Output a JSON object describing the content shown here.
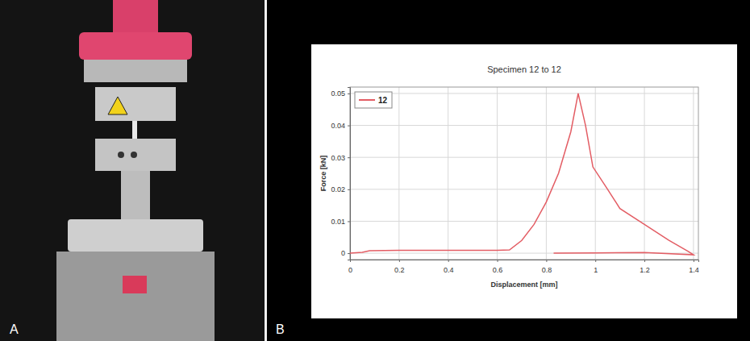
{
  "panel_labels": [
    "A",
    "B"
  ],
  "chart_data": {
    "type": "line",
    "title": "Specimen 12 to 12",
    "x_label": "Displacement [mm]",
    "y_label": "Force [kN]",
    "x": [
      0,
      0.05,
      0.08,
      0.2,
      0.4,
      0.6,
      0.65,
      0.7,
      0.75,
      0.8,
      0.85,
      0.9,
      0.93,
      0.96,
      0.99,
      1.05,
      1.1,
      1.2,
      1.3,
      1.38,
      1.4,
      1.2,
      1.0,
      0.83
    ],
    "series": [
      {
        "name": "12",
        "color": "#e35d64",
        "values": [
          0,
          0.0003,
          0.0008,
          0.0009,
          0.0009,
          0.0009,
          0.001,
          0.004,
          0.009,
          0.016,
          0.025,
          0.038,
          0.05,
          0.04,
          0.027,
          0.02,
          0.014,
          0.009,
          0.004,
          0.0005,
          -0.0005,
          0.0002,
          0.0001,
          0
        ]
      }
    ],
    "xlim": [
      0,
      1.42
    ],
    "ylim": [
      -0.002,
      0.052
    ],
    "xticks": [
      0,
      0.2,
      0.4,
      0.6,
      0.8,
      1,
      1.2,
      1.4
    ],
    "yticks": [
      0,
      0.01,
      0.02,
      0.03,
      0.04,
      0.05
    ],
    "grid": true,
    "legend": "top-left"
  }
}
